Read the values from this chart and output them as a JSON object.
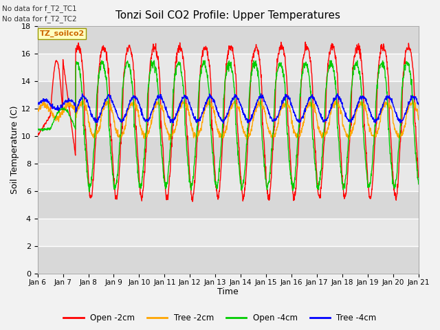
{
  "title": "Tonzi Soil CO2 Profile: Upper Temperatures",
  "xlabel": "Time",
  "ylabel": "Soil Temperature (C)",
  "ylim": [
    0,
    18
  ],
  "yticks": [
    0,
    2,
    4,
    6,
    8,
    10,
    12,
    14,
    16,
    18
  ],
  "xtick_labels": [
    "Jan 6",
    "Jan 7",
    "Jan 8",
    "Jan 9",
    "Jan 10",
    "Jan 11",
    "Jan 12",
    "Jan 13",
    "Jan 14",
    "Jan 15",
    "Jan 16",
    "Jan 17",
    "Jan 18",
    "Jan 19",
    "Jan 20",
    "Jan 21"
  ],
  "legend_labels": [
    "Open -2cm",
    "Tree -2cm",
    "Open -4cm",
    "Tree -4cm"
  ],
  "legend_colors": [
    "#ff0000",
    "#ffa500",
    "#00cc00",
    "#0000ff"
  ],
  "no_data_text": [
    "No data for f_T2_TC1",
    "No data for f_T2_TC2"
  ],
  "box_label": "TZ_soilco2",
  "fig_width": 6.4,
  "fig_height": 4.8,
  "dpi": 100
}
